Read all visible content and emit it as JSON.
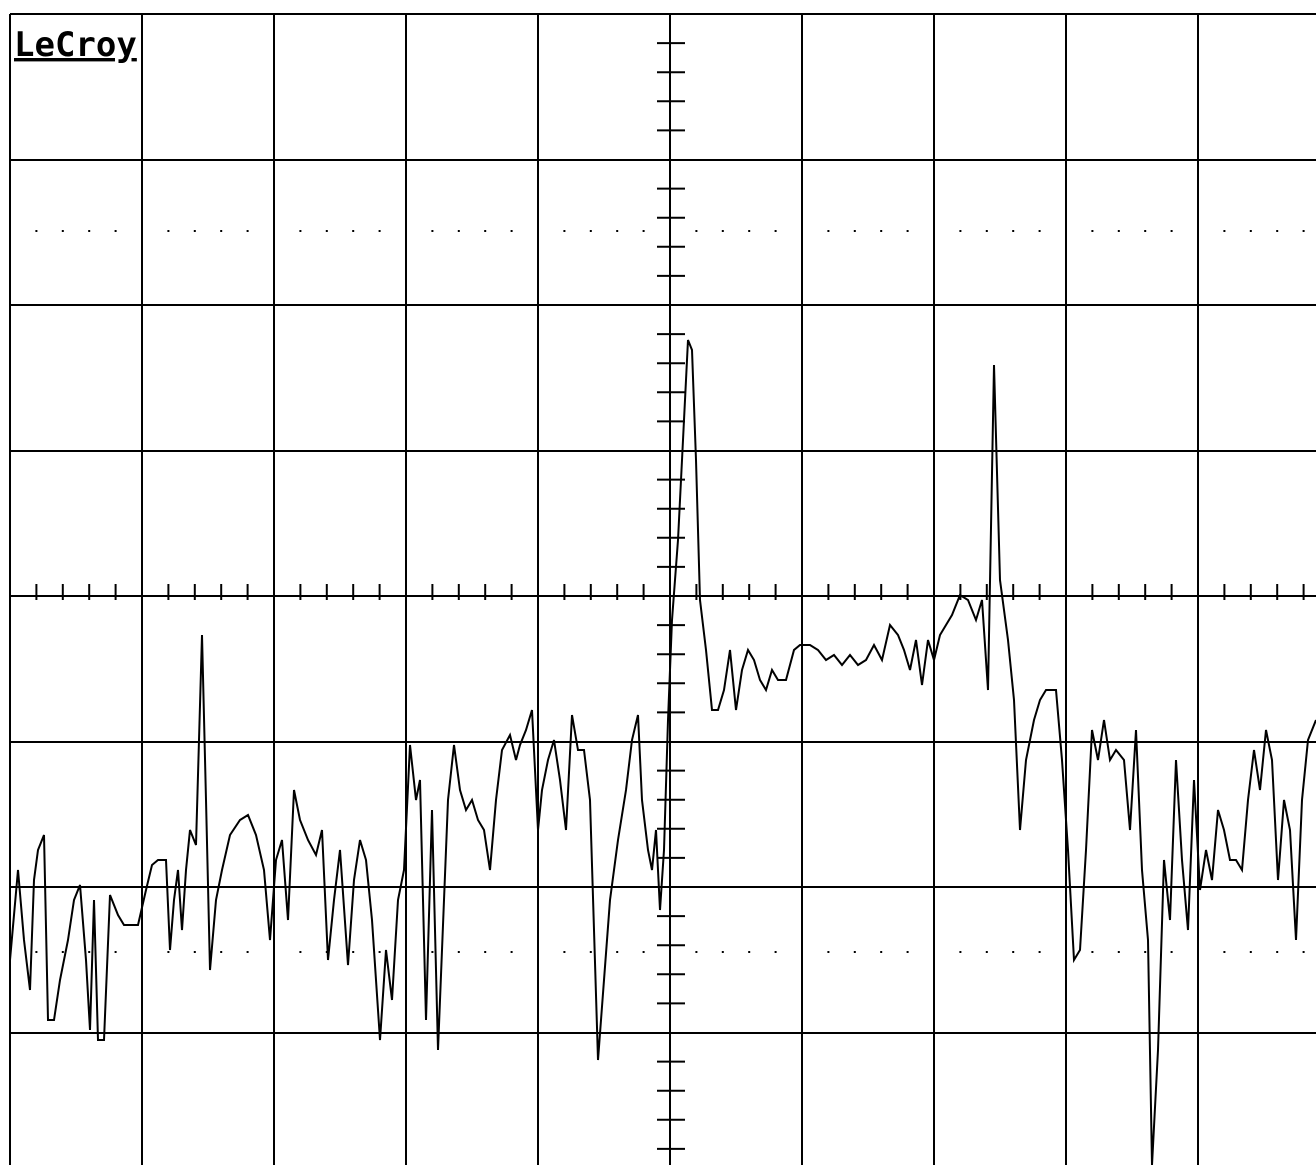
{
  "header": {
    "logo": "LeCroy"
  }
}
